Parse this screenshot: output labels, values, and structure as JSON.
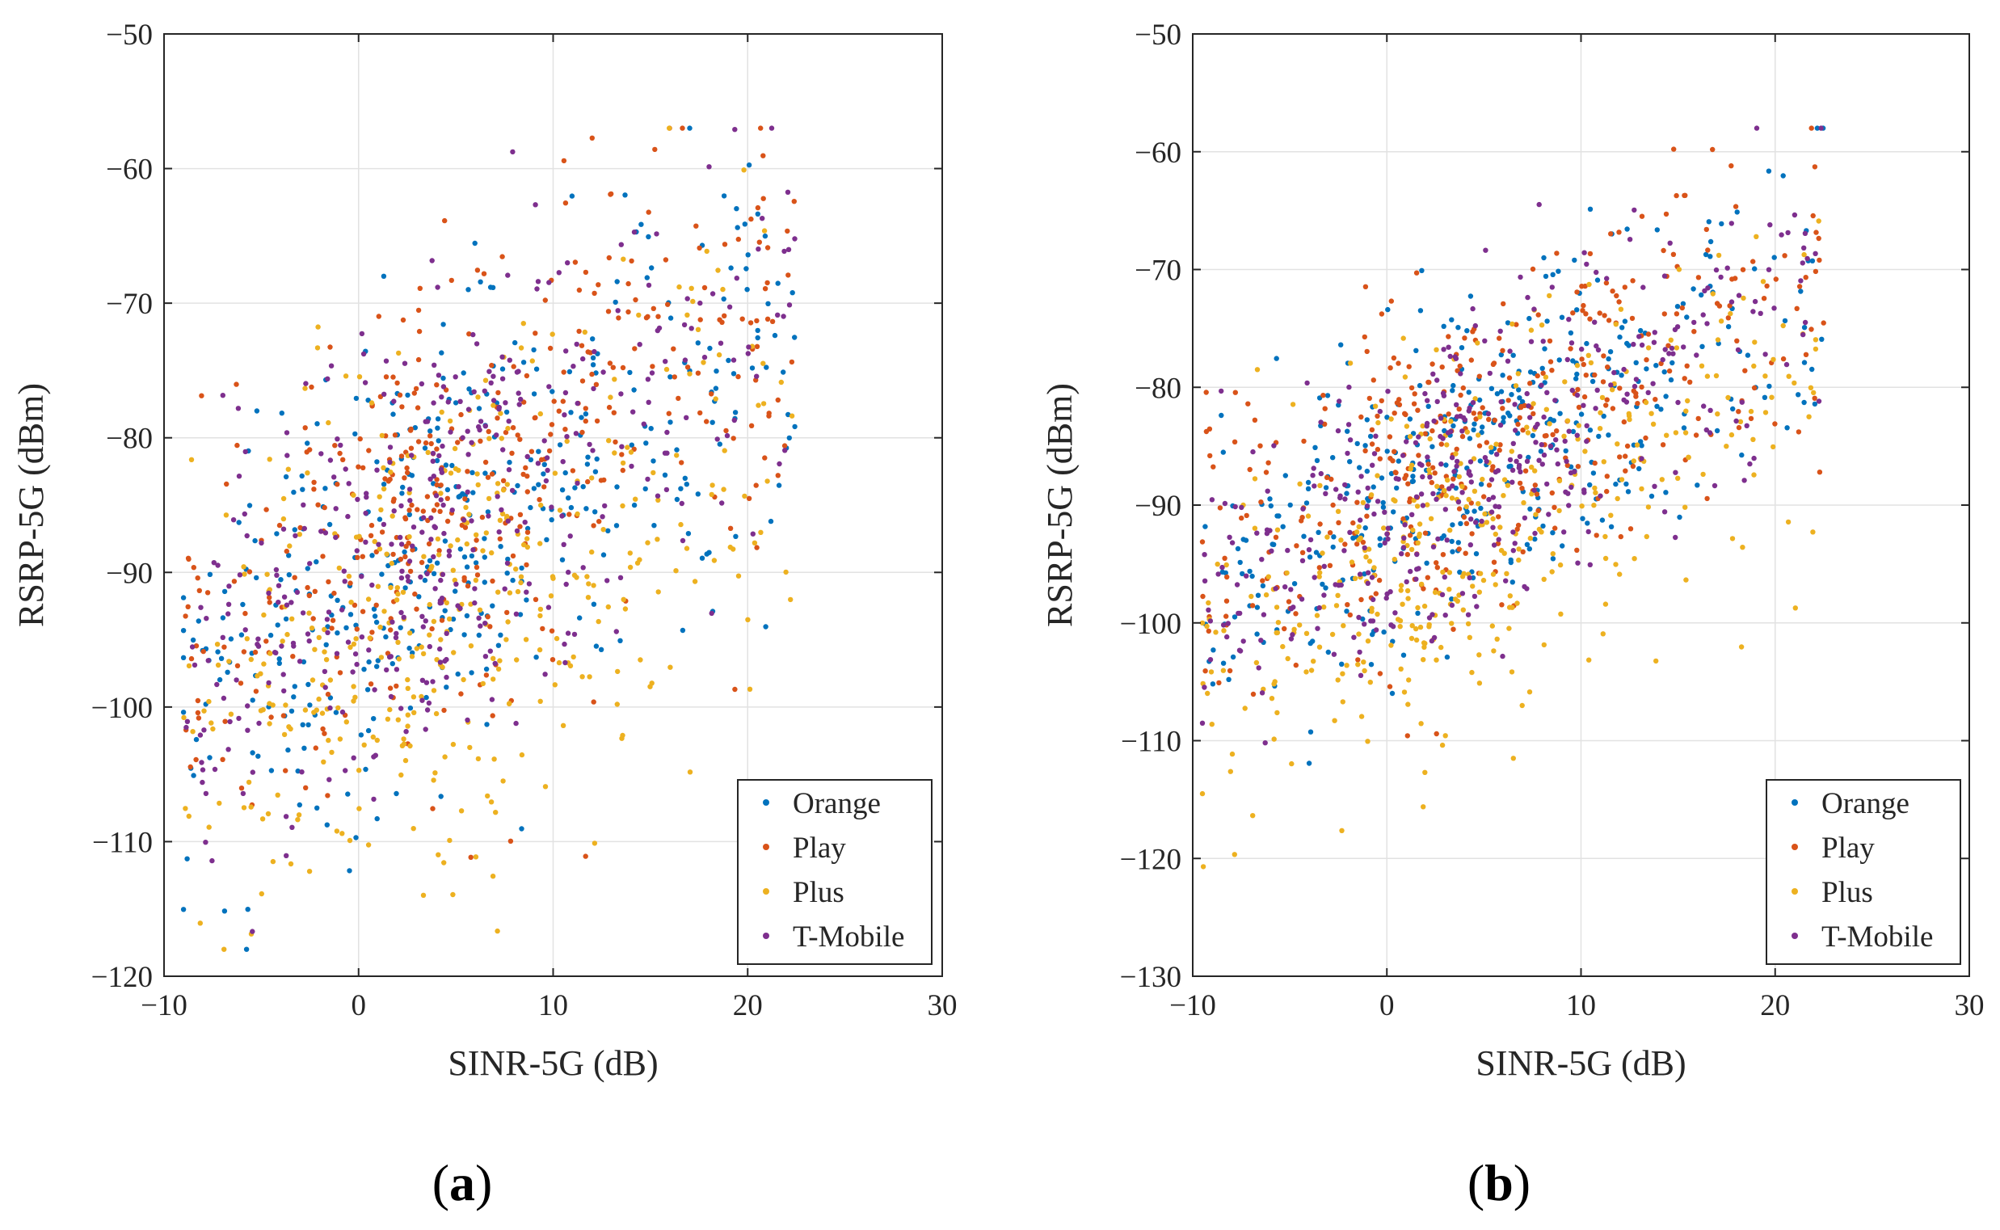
{
  "chart_data": [
    {
      "type": "scatter",
      "panel_label": "a",
      "xlabel": "SINR-5G (dB)",
      "ylabel": "RSRP-5G (dBm)",
      "xlim": [
        -10,
        30
      ],
      "ylim": [
        -120,
        -50
      ],
      "xticks": [
        -10,
        0,
        10,
        20,
        30
      ],
      "yticks": [
        -120,
        -110,
        -100,
        -90,
        -80,
        -70,
        -60,
        -50
      ],
      "grid": true,
      "legend_position": "bottom-right",
      "point_count_per_series": 400,
      "series": [
        {
          "name": "Orange",
          "color": "#0072BD",
          "trend": {
            "intercept": -91,
            "slope": 0.85,
            "spread": 8
          }
        },
        {
          "name": "Play",
          "color": "#D95319",
          "trend": {
            "intercept": -89,
            "slope": 0.9,
            "spread": 8
          }
        },
        {
          "name": "Plus",
          "color": "#EDB120",
          "trend": {
            "intercept": -96,
            "slope": 0.75,
            "spread": 9
          }
        },
        {
          "name": "T-Mobile",
          "color": "#7E2F8E",
          "trend": {
            "intercept": -90,
            "slope": 0.9,
            "spread": 8
          }
        }
      ],
      "x_range_observed": [
        -9,
        22.5
      ],
      "y_range_observed": [
        -118,
        -57
      ]
    },
    {
      "type": "scatter",
      "panel_label": "b",
      "xlabel": "SINR-5G (dB)",
      "ylabel": "RSRP-5G (dBm)",
      "xlim": [
        -10,
        30
      ],
      "ylim": [
        -130,
        -50
      ],
      "xticks": [
        -10,
        0,
        10,
        20,
        30
      ],
      "yticks": [
        -130,
        -120,
        -110,
        -100,
        -90,
        -80,
        -70,
        -60,
        -50
      ],
      "grid": true,
      "legend_position": "bottom-right",
      "point_count_per_series": 400,
      "series": [
        {
          "name": "Orange",
          "color": "#0072BD",
          "trend": {
            "intercept": -90,
            "slope": 0.8,
            "spread": 7
          }
        },
        {
          "name": "Play",
          "color": "#D95319",
          "trend": {
            "intercept": -89,
            "slope": 0.8,
            "spread": 7
          }
        },
        {
          "name": "Plus",
          "color": "#EDB120",
          "trend": {
            "intercept": -96,
            "slope": 0.75,
            "spread": 8
          }
        },
        {
          "name": "T-Mobile",
          "color": "#7E2F8E",
          "trend": {
            "intercept": -90,
            "slope": 0.8,
            "spread": 7
          }
        }
      ],
      "x_range_observed": [
        -9.5,
        22.5
      ],
      "y_range_observed": [
        -121,
        -58
      ]
    }
  ]
}
